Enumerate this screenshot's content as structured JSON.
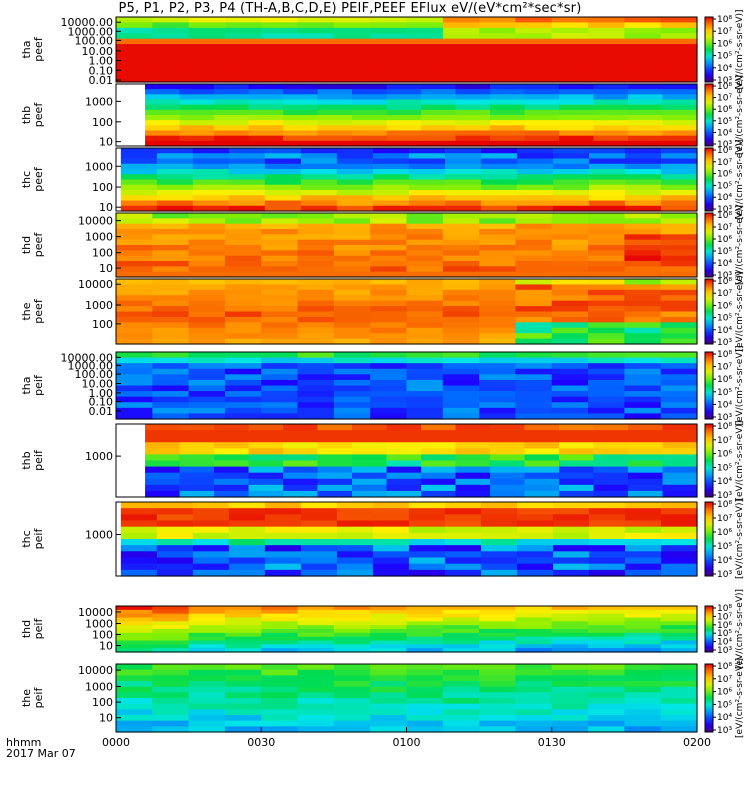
{
  "chart_data": {
    "type": "heatmap",
    "title": "P5, P1, P2, P3, P4 (TH-A,B,C,D,E) PEIF,PEEF EFlux eV/(eV*cm²*sec*sr)",
    "x_axis": {
      "label_line1": "hhmm",
      "label_line2": "2017 Mar 07",
      "ticks": [
        "0000",
        "0030",
        "0100",
        "0130",
        "0200"
      ],
      "range_minutes": [
        0,
        120
      ]
    },
    "colorbar": {
      "label": "[eV/(cm²-s-sr-eV)]",
      "ticks": [
        "10³",
        "10⁴",
        "10⁵",
        "10⁶",
        "10⁷",
        "10⁸"
      ],
      "range_log10": [
        3,
        8
      ],
      "scale": "log"
    },
    "panels": [
      {
        "probe": "tha",
        "instrument": "peef",
        "yticks": [
          "10000.00",
          "1000.00",
          "100.00",
          "10.00",
          "1.00",
          "0.10",
          "0.01"
        ],
        "data_start_minutes": 0,
        "pattern": "tha_peef"
      },
      {
        "probe": "thb",
        "instrument": "peef",
        "yticks": [
          "1000",
          "100",
          "10"
        ],
        "data_start_minutes": 6,
        "pattern": "thb_peef"
      },
      {
        "probe": "thc",
        "instrument": "peef",
        "yticks": [
          "1000",
          "100",
          "10"
        ],
        "data_start_minutes": 1,
        "pattern": "thc_peef"
      },
      {
        "probe": "thd",
        "instrument": "peef",
        "yticks": [
          "10000",
          "1000",
          "100",
          "10"
        ],
        "data_start_minutes": 0,
        "pattern": "thd_peef"
      },
      {
        "probe": "the",
        "instrument": "peef",
        "yticks": [
          "10000",
          "1000",
          "100"
        ],
        "data_start_minutes": 0,
        "pattern": "the_peef"
      },
      {
        "probe": "tha",
        "instrument": "peif",
        "yticks": [
          "10000.00",
          "1000.00",
          "100.00",
          "10.00",
          "1.00",
          "0.10",
          "0.01"
        ],
        "data_start_minutes": 0,
        "pattern": "tha_peif"
      },
      {
        "probe": "thb",
        "instrument": "peif",
        "yticks": [
          "1000"
        ],
        "data_start_minutes": 6,
        "pattern": "thb_peif"
      },
      {
        "probe": "thc",
        "instrument": "peif",
        "yticks": [
          "1000"
        ],
        "data_start_minutes": 1,
        "pattern": "thc_peif"
      },
      {
        "probe": "thd",
        "instrument": "peif",
        "yticks": [
          "10000",
          "1000",
          "100",
          "10"
        ],
        "data_start_minutes": 0,
        "pattern": "thd_peif"
      },
      {
        "probe": "the",
        "instrument": "peif",
        "yticks": [
          "10000",
          "1000",
          "100",
          "10"
        ],
        "data_start_minutes": 0,
        "pattern": "the_peif"
      }
    ]
  }
}
